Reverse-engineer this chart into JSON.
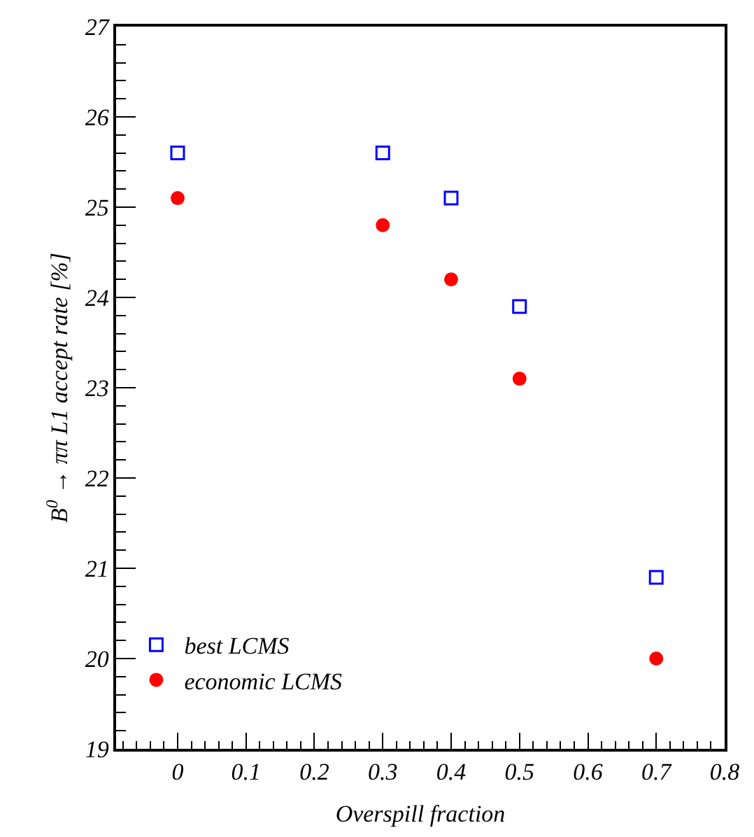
{
  "chart_data": {
    "type": "scatter",
    "xlabel": "Overspill fraction",
    "ylabel": "B$^{0}$ → ππ L1 accept rate [%]",
    "x": [
      0,
      0.3,
      0.4,
      0.5,
      0.7
    ],
    "series": [
      {
        "name": "best LCMS",
        "color": "#0000ff",
        "marker": "square",
        "values": [
          25.6,
          25.6,
          25.1,
          23.9,
          20.9
        ]
      },
      {
        "name": "economic LCMS",
        "color": "#ff0000",
        "marker": "circle",
        "values": [
          25.1,
          24.8,
          24.2,
          23.1,
          20.0
        ]
      }
    ],
    "xlim": [
      -0.09,
      0.8
    ],
    "xticks": [
      0,
      0.1,
      0.2,
      0.3,
      0.4,
      0.5,
      0.6,
      0.7,
      0.8
    ],
    "ylim": [
      19,
      27
    ],
    "yticks": [
      19,
      20,
      21,
      22,
      23,
      24,
      25,
      26,
      27
    ],
    "legend": "bottom left"
  }
}
